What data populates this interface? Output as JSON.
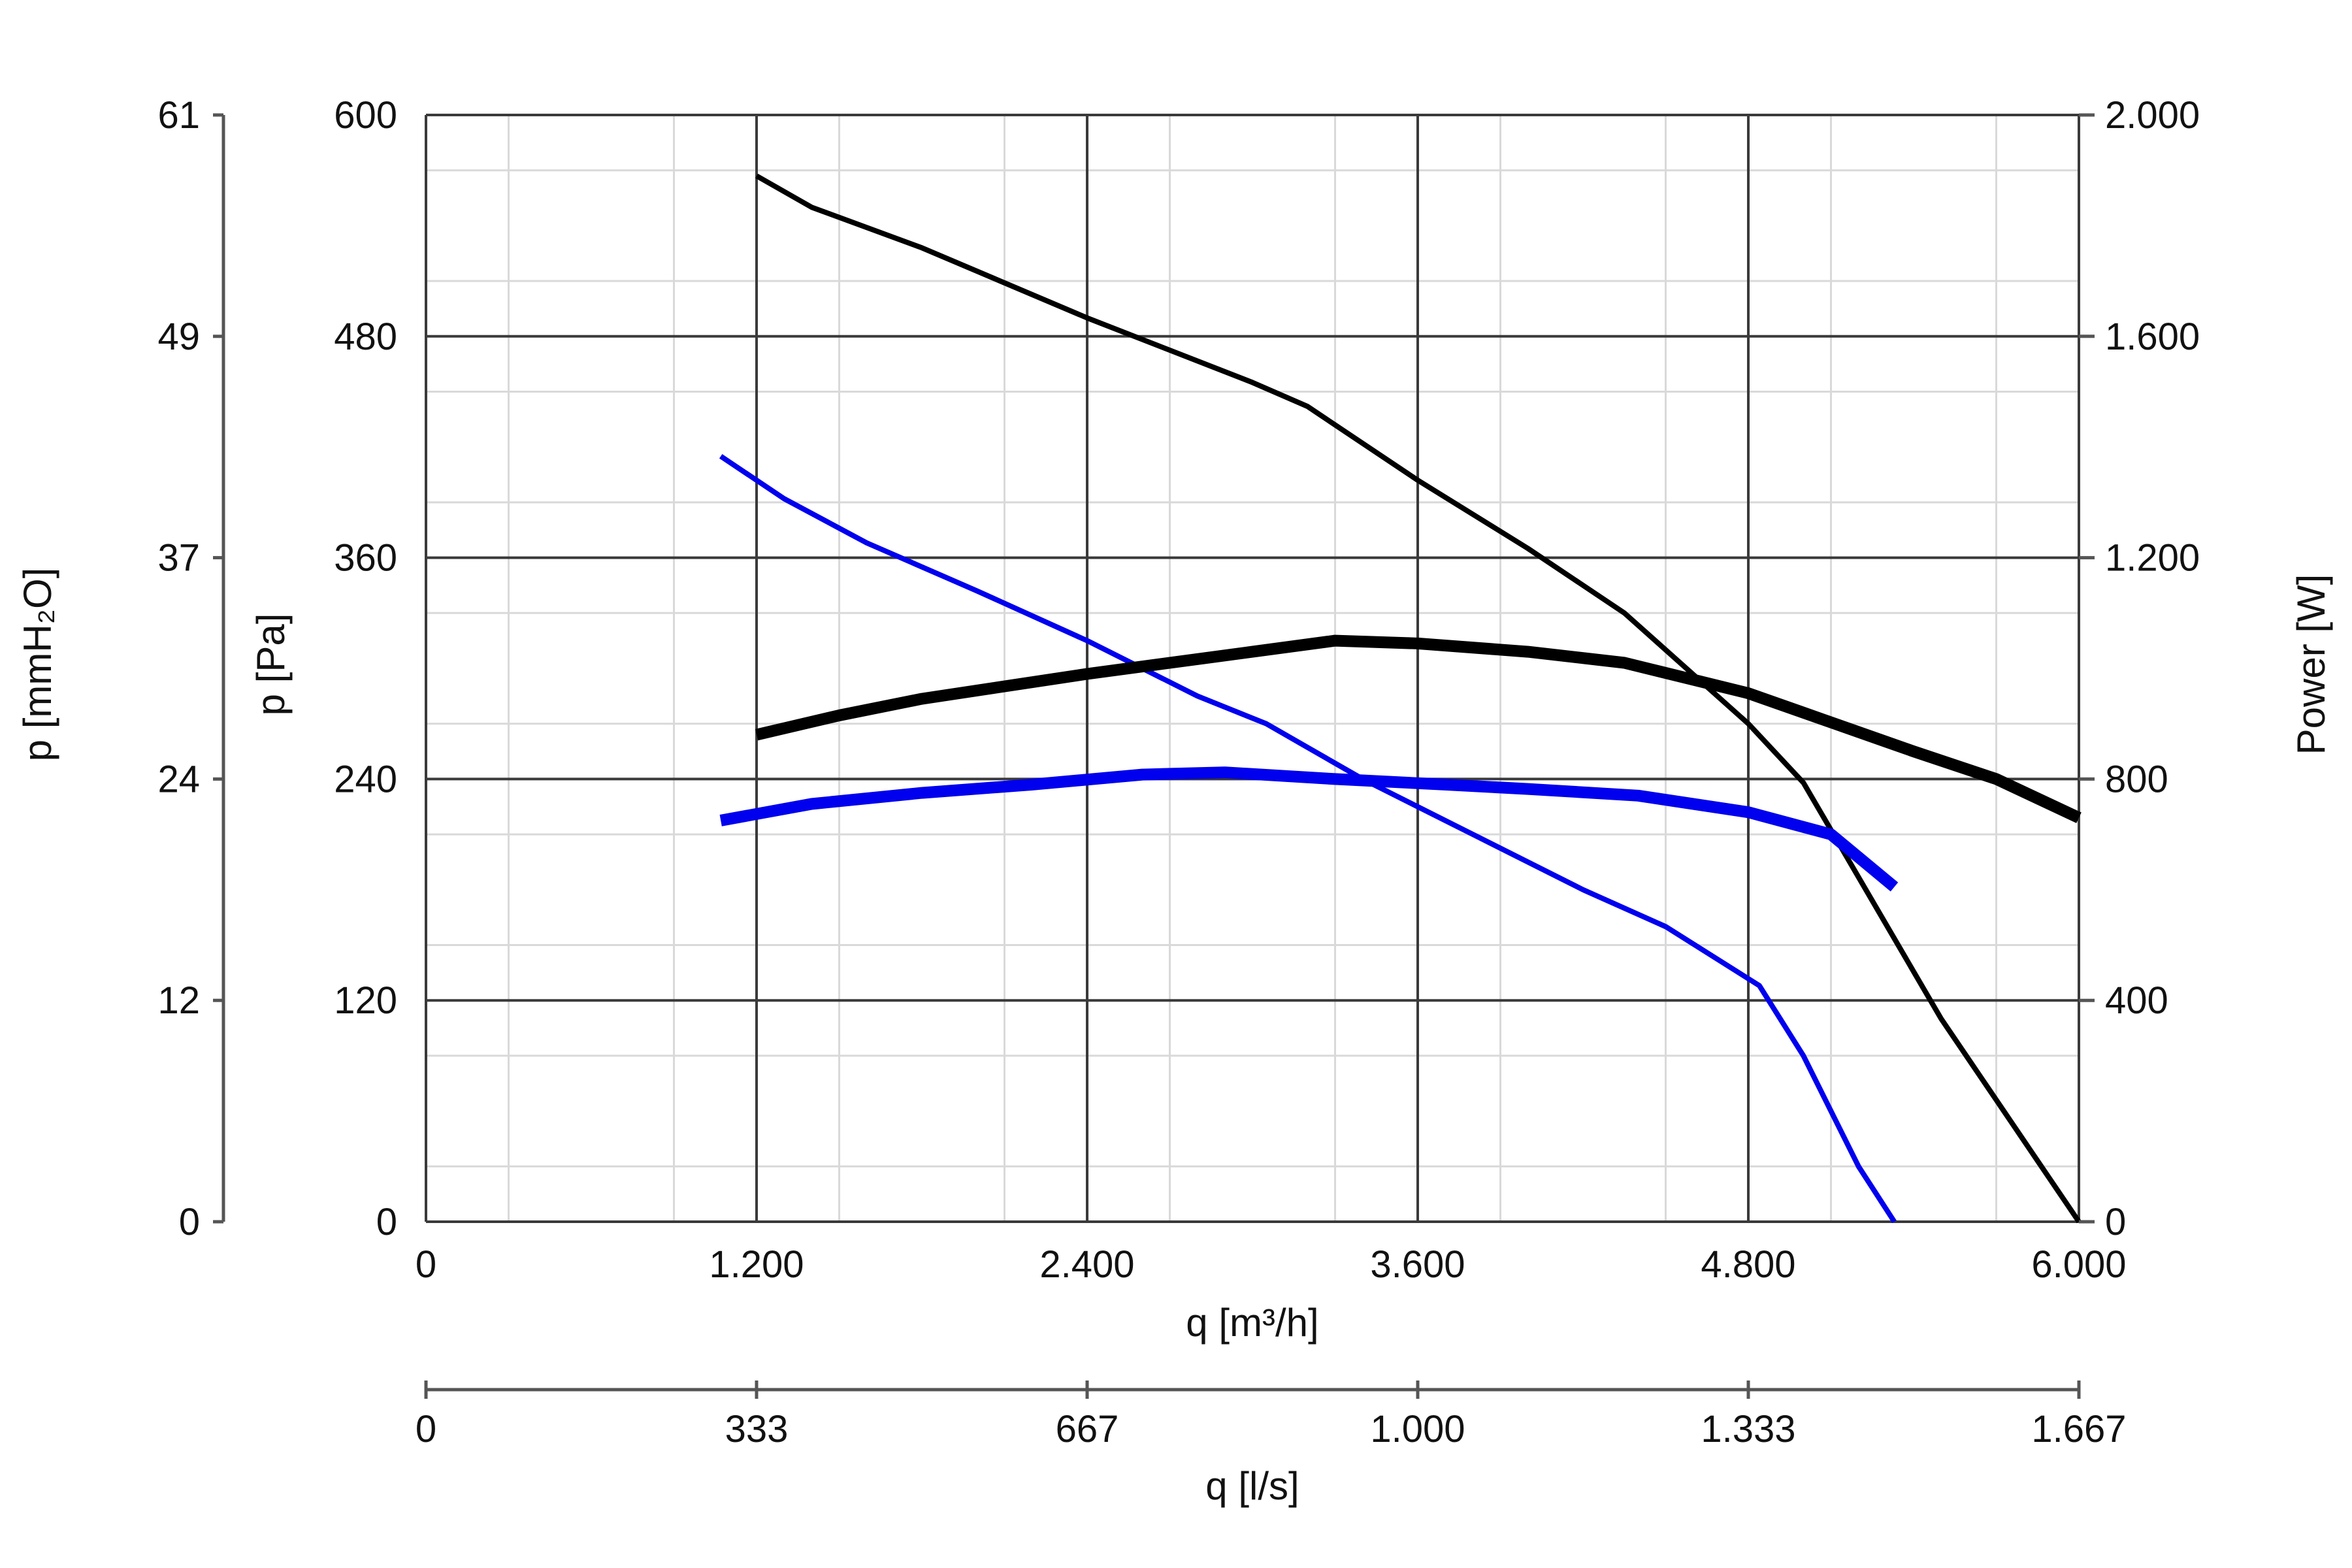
{
  "chart_data": {
    "type": "line",
    "title": "",
    "x_axis": {
      "label": "q [m³/h]",
      "range": [
        0,
        6000
      ],
      "ticks": [
        0,
        1200,
        2400,
        3600,
        4800,
        6000
      ],
      "tick_labels": [
        "0",
        "1.200",
        "2.400",
        "3.600",
        "4.800",
        "6.000"
      ]
    },
    "x2_axis": {
      "label": "q [l/s]",
      "range": [
        0,
        1666.67
      ],
      "tick_labels": [
        "0",
        "333",
        "667",
        "1.000",
        "1.333",
        "1.667"
      ]
    },
    "y_axis": {
      "label": "p [Pa]",
      "range": [
        0,
        600
      ],
      "ticks": [
        0,
        120,
        240,
        360,
        480,
        600
      ],
      "tick_labels": [
        "0",
        "120",
        "240",
        "360",
        "480",
        "600"
      ]
    },
    "y_left2_axis": {
      "label": "p [mmH₂O]",
      "range": [
        0,
        61.18
      ],
      "tick_labels": [
        "0",
        "12",
        "24",
        "37",
        "49",
        "61"
      ]
    },
    "y_right_axis": {
      "label": "Power [W]",
      "range": [
        0,
        2000
      ],
      "ticks": [
        0,
        400,
        800,
        1200,
        1600,
        2000
      ],
      "tick_labels": [
        "0",
        "400",
        "800",
        "1.200",
        "1.600",
        "2.000"
      ]
    },
    "grid": true,
    "series": [
      {
        "axis": "pressure",
        "color": "#000000",
        "weight": "thin",
        "points": [
          [
            1200,
            567
          ],
          [
            1400,
            550
          ],
          [
            1800,
            528
          ],
          [
            2400,
            490
          ],
          [
            3000,
            455
          ],
          [
            3200,
            442
          ],
          [
            3600,
            402
          ],
          [
            4000,
            365
          ],
          [
            4350,
            330
          ],
          [
            4800,
            270
          ],
          [
            5000,
            238
          ],
          [
            5500,
            110
          ],
          [
            6000,
            0
          ]
        ]
      },
      {
        "axis": "pressure",
        "color": "#0000ee",
        "weight": "thin",
        "points": [
          [
            1070,
            415
          ],
          [
            1300,
            392
          ],
          [
            1600,
            368
          ],
          [
            2000,
            342
          ],
          [
            2400,
            315
          ],
          [
            2800,
            285
          ],
          [
            3050,
            270
          ],
          [
            3400,
            240
          ],
          [
            3800,
            210
          ],
          [
            4200,
            180
          ],
          [
            4500,
            160
          ],
          [
            4840,
            128
          ],
          [
            5000,
            90
          ],
          [
            5200,
            30
          ],
          [
            5330,
            0
          ]
        ]
      },
      {
        "axis": "power",
        "color": "#000000",
        "weight": "thick",
        "points": [
          [
            1200,
            880
          ],
          [
            1500,
            915
          ],
          [
            1800,
            945
          ],
          [
            2400,
            990
          ],
          [
            3000,
            1030
          ],
          [
            3300,
            1050
          ],
          [
            3600,
            1045
          ],
          [
            4000,
            1030
          ],
          [
            4350,
            1010
          ],
          [
            4800,
            955
          ],
          [
            5000,
            920
          ],
          [
            5400,
            850
          ],
          [
            5700,
            800
          ],
          [
            6000,
            730
          ]
        ]
      },
      {
        "axis": "power",
        "color": "#0000ee",
        "weight": "thick",
        "points": [
          [
            1070,
            725
          ],
          [
            1400,
            755
          ],
          [
            1800,
            775
          ],
          [
            2200,
            790
          ],
          [
            2600,
            808
          ],
          [
            2900,
            812
          ],
          [
            3300,
            800
          ],
          [
            3700,
            790
          ],
          [
            4000,
            782
          ],
          [
            4400,
            770
          ],
          [
            4800,
            740
          ],
          [
            5100,
            700
          ],
          [
            5330,
            605
          ]
        ]
      }
    ]
  }
}
